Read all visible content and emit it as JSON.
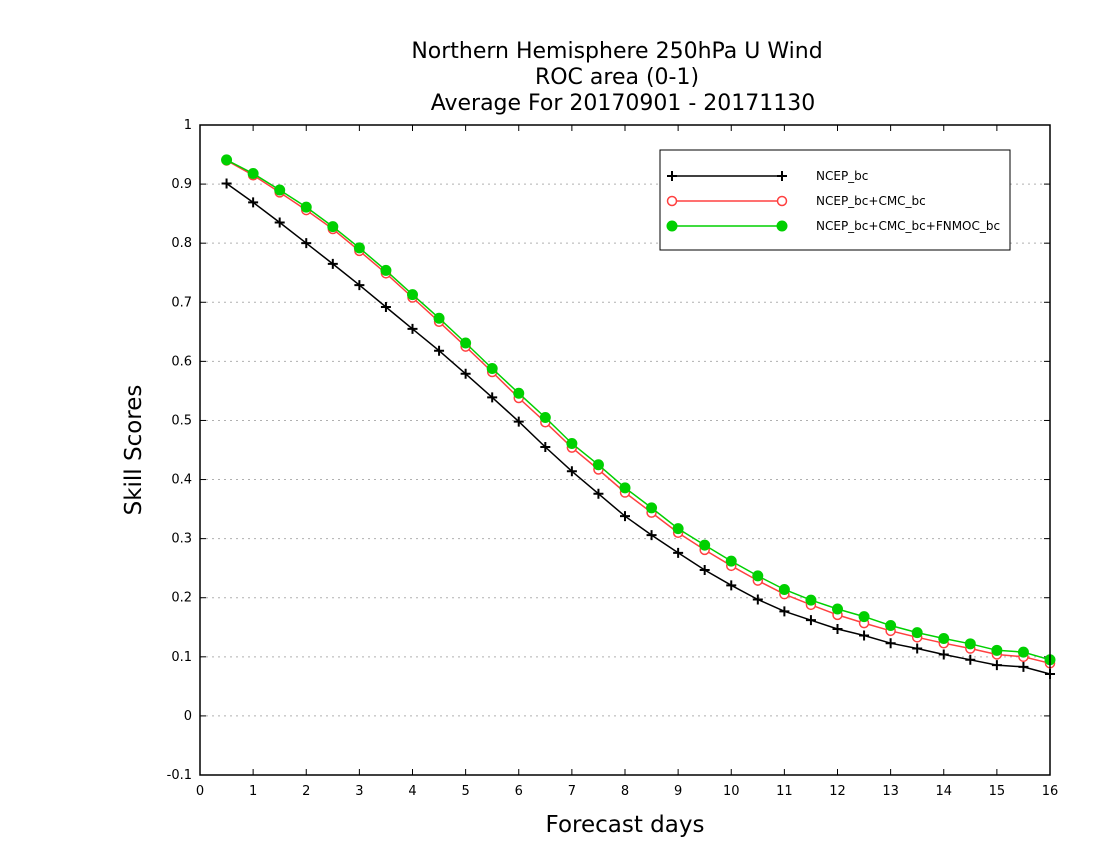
{
  "chart_data": {
    "type": "line",
    "title_lines": [
      "Northern Hemisphere 250hPa U Wind",
      "ROC area (0-1)",
      "Average For 20170901 - 20171130"
    ],
    "xlabel": "Forecast days",
    "ylabel": "Skill Scores",
    "xlim": [
      0,
      16
    ],
    "ylim": [
      -0.1,
      1
    ],
    "x_ticks": [
      "0",
      "1",
      "2",
      "3",
      "4",
      "5",
      "6",
      "7",
      "8",
      "9",
      "10",
      "11",
      "12",
      "13",
      "14",
      "15",
      "16"
    ],
    "y_ticks": [
      "-0.1",
      "0",
      "0.1",
      "0.2",
      "0.3",
      "0.4",
      "0.5",
      "0.6",
      "0.7",
      "0.8",
      "0.9",
      "1"
    ],
    "grid": "horizontal dotted",
    "legend_position": "top-right",
    "x": [
      0.5,
      1,
      1.5,
      2,
      2.5,
      3,
      3.5,
      4,
      4.5,
      5,
      5.5,
      6,
      6.5,
      7,
      7.5,
      8,
      8.5,
      9,
      9.5,
      10,
      10.5,
      11,
      11.5,
      12,
      12.5,
      13,
      13.5,
      14,
      14.5,
      15,
      15.5,
      16
    ],
    "series": [
      {
        "name": "NCEP_bc",
        "color": "#000000",
        "marker": "plus",
        "values": [
          0.901,
          0.869,
          0.835,
          0.8,
          0.765,
          0.729,
          0.692,
          0.655,
          0.618,
          0.579,
          0.539,
          0.498,
          0.455,
          0.414,
          0.376,
          0.338,
          0.306,
          0.276,
          0.247,
          0.221,
          0.197,
          0.177,
          0.162,
          0.147,
          0.136,
          0.123,
          0.114,
          0.104,
          0.095,
          0.086,
          0.083,
          0.071
        ]
      },
      {
        "name": "NCEP_bc+CMC_bc",
        "color": "#ff4040",
        "marker": "open-circle",
        "values": [
          0.94,
          0.915,
          0.886,
          0.856,
          0.824,
          0.787,
          0.749,
          0.708,
          0.667,
          0.625,
          0.582,
          0.538,
          0.497,
          0.454,
          0.417,
          0.378,
          0.344,
          0.31,
          0.281,
          0.254,
          0.229,
          0.206,
          0.188,
          0.171,
          0.157,
          0.144,
          0.133,
          0.123,
          0.114,
          0.104,
          0.1,
          0.089
        ]
      },
      {
        "name": "NCEP_bc+CMC_bc+FNMOC_bc",
        "color": "#00d000",
        "marker": "filled-circle",
        "values": [
          0.941,
          0.918,
          0.89,
          0.861,
          0.828,
          0.792,
          0.754,
          0.713,
          0.673,
          0.631,
          0.588,
          0.546,
          0.505,
          0.461,
          0.425,
          0.386,
          0.352,
          0.317,
          0.289,
          0.262,
          0.237,
          0.214,
          0.196,
          0.181,
          0.168,
          0.153,
          0.141,
          0.131,
          0.122,
          0.111,
          0.108,
          0.095
        ]
      }
    ]
  }
}
